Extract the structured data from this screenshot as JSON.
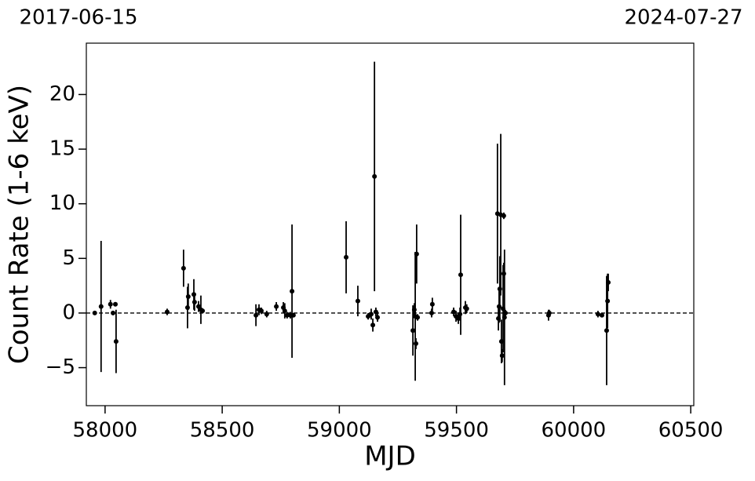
{
  "chart_data": {
    "type": "errorbar",
    "date_start": "2017-06-15",
    "date_end": "2024-07-27",
    "xlabel": "MJD",
    "ylabel": "Count Rate (1-6 keV)",
    "xlim": [
      57920,
      60513
    ],
    "ylim": [
      -8.48,
      24.7
    ],
    "xticks": [
      58000,
      58500,
      59000,
      59500,
      60000,
      60500
    ],
    "yticks": [
      {
        "value": -5,
        "label": "−5"
      },
      0,
      5,
      10,
      15,
      20
    ],
    "reference_line": 0,
    "color": "#000000",
    "series": [
      {
        "x": [
          57956,
          57983,
          58023,
          58034,
          58044,
          58047,
          58265,
          58335,
          58352,
          58355,
          58379,
          58382,
          58399,
          58409,
          58416,
          58644,
          58657,
          58667,
          58690,
          58731,
          58761,
          58767,
          58777,
          58791,
          58798,
          58804,
          59029,
          59079,
          59123,
          59136,
          59143,
          59150,
          59156,
          59163,
          59314,
          59320,
          59324,
          59327,
          59330,
          59334,
          59394,
          59397,
          59488,
          59498,
          59508,
          59518,
          59515,
          59538,
          59544,
          59675,
          59679,
          59682,
          59685,
          59689,
          59692,
          59695,
          59699,
          59702,
          59702,
          59705,
          59709,
          59893,
          59896,
          60104,
          60121,
          60141,
          60145,
          60148
        ],
        "values": [
          0,
          0.6,
          0.8,
          0,
          0.8,
          -2.6,
          0.1,
          4.1,
          0.5,
          1.5,
          1.7,
          1.0,
          0.6,
          0.3,
          0.2,
          -0.2,
          0.3,
          0.2,
          -0.1,
          0.6,
          0.5,
          0.2,
          -0.2,
          -0.2,
          2.0,
          -0.2,
          5.1,
          1.1,
          -0.3,
          -0.1,
          -1.1,
          12.5,
          0.1,
          -0.4,
          -1.6,
          0.3,
          -0.3,
          -2.8,
          5.4,
          -0.4,
          0,
          0.8,
          0.1,
          -0.3,
          -0.5,
          3.5,
          -0.1,
          0.5,
          0.4,
          9.1,
          -0.5,
          0.6,
          2.2,
          9.0,
          -2.6,
          -3.9,
          0.4,
          8.9,
          3.6,
          -0.4,
          0,
          -0.2,
          0,
          -0.1,
          -0.2,
          -1.6,
          1.1,
          2.8
        ],
        "errors": [
          0.1,
          6,
          0.4,
          0.2,
          0.1,
          2.9,
          0.3,
          1.7,
          1.9,
          1.2,
          1.4,
          0.8,
          0.5,
          1.3,
          0.2,
          1.0,
          0.5,
          0.3,
          0.3,
          0.4,
          0.5,
          0.7,
          0.3,
          0.3,
          6.1,
          0.1,
          3.3,
          1.4,
          0.3,
          0.5,
          0.6,
          10.5,
          0.4,
          0.4,
          2.3,
          0.6,
          5.9,
          0.5,
          2.7,
          0.3,
          0.4,
          0.6,
          0.4,
          0.5,
          0.5,
          5.5,
          0.6,
          0.6,
          0.4,
          6.4,
          1.1,
          1.5,
          3,
          7.4,
          2.0,
          0.6,
          4,
          0.3,
          1,
          6.2,
          0.3,
          0.5,
          0.3,
          0.3,
          0.2,
          5.0,
          2.5,
          0.8
        ]
      }
    ]
  }
}
